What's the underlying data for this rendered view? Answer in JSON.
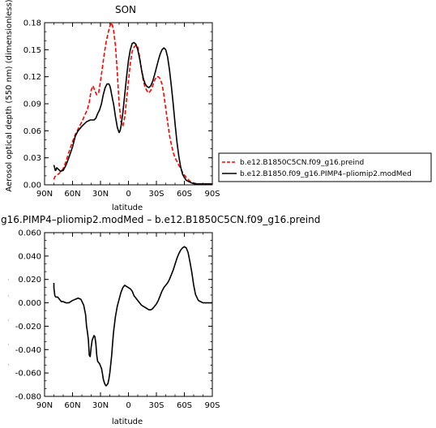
{
  "chart_data": [
    {
      "type": "line",
      "title": "SON",
      "xlabel": "latitude",
      "ylabel": "Aerosol optical depth (550 nm) (dimensionless)",
      "x_ticks": [
        90,
        60,
        30,
        0,
        -30,
        -60,
        -90
      ],
      "x_tick_labels": [
        "90N",
        "60N",
        "30N",
        "0",
        "30S",
        "60S",
        "90S"
      ],
      "xlim": [
        90,
        -90
      ],
      "y_ticks": [
        0,
        0.03,
        0.06,
        0.09,
        0.12,
        0.15,
        0.18
      ],
      "y_tick_labels": [
        "0.00",
        "0.03",
        "0.06",
        "0.09",
        "0.12",
        "0.15",
        "0.18"
      ],
      "ylim": [
        0,
        0.18
      ],
      "series": [
        {
          "name": "b.e12.B1850C5CN.f09_g16.preind",
          "color": "#ff0000",
          "dash": "dashed",
          "x": [
            80,
            79,
            77,
            75,
            73,
            70,
            67,
            64,
            60,
            57,
            54,
            50,
            47,
            44,
            42,
            40,
            38,
            36,
            34,
            32,
            30,
            28,
            26,
            24,
            22,
            20,
            18,
            16,
            14,
            12,
            10,
            8,
            6,
            4,
            2,
            0,
            -2,
            -4,
            -6,
            -8,
            -10,
            -12,
            -14,
            -16,
            -18,
            -20,
            -22,
            -24,
            -26,
            -28,
            -30,
            -32,
            -34,
            -36,
            -38,
            -40,
            -42,
            -44,
            -46,
            -48,
            -50,
            -52,
            -54,
            -56,
            -58,
            -60,
            -62,
            -64,
            -66,
            -68,
            -70,
            -72,
            -75,
            -78,
            -80,
            -84,
            -90
          ],
          "values": [
            0.006,
            0.009,
            0.011,
            0.012,
            0.014,
            0.018,
            0.026,
            0.036,
            0.048,
            0.056,
            0.062,
            0.07,
            0.077,
            0.084,
            0.092,
            0.105,
            0.11,
            0.104,
            0.1,
            0.102,
            0.115,
            0.13,
            0.145,
            0.158,
            0.168,
            0.176,
            0.18,
            0.172,
            0.155,
            0.125,
            0.09,
            0.07,
            0.065,
            0.075,
            0.095,
            0.115,
            0.135,
            0.148,
            0.153,
            0.155,
            0.153,
            0.142,
            0.128,
            0.115,
            0.108,
            0.104,
            0.102,
            0.105,
            0.11,
            0.116,
            0.12,
            0.12,
            0.118,
            0.112,
            0.1,
            0.085,
            0.07,
            0.055,
            0.045,
            0.036,
            0.03,
            0.026,
            0.022,
            0.018,
            0.014,
            0.011,
            0.008,
            0.006,
            0.004,
            0.003,
            0.002,
            0.0015,
            0.001,
            0.001,
            0.001,
            0.001,
            0.001
          ]
        },
        {
          "name": "b.e12.B1850.f09_g16.PIMP4–pliomip2.modMed",
          "color": "#000000",
          "dash": "solid",
          "x": [
            80,
            79.5,
            79,
            78.5,
            78,
            77,
            75,
            73,
            70,
            67,
            64,
            60,
            57,
            54,
            50,
            47,
            45,
            43,
            41,
            39,
            37,
            35,
            33,
            31,
            29,
            27,
            25,
            23,
            21,
            20,
            19,
            18,
            17,
            16,
            15,
            14,
            13,
            12,
            11,
            10,
            9,
            8,
            6,
            4,
            2,
            0,
            -2,
            -4,
            -6,
            -8,
            -10,
            -12,
            -14,
            -16,
            -18,
            -20,
            -22,
            -24,
            -26,
            -28,
            -30,
            -32,
            -34,
            -36,
            -38,
            -40,
            -42,
            -44,
            -46,
            -48,
            -50,
            -52,
            -54,
            -56,
            -58,
            -60,
            -62,
            -64,
            -66,
            -68,
            -70,
            -72,
            -75,
            -78,
            -80,
            -84,
            -90
          ],
          "values": [
            0.022,
            0.02,
            0.018,
            0.016,
            0.016,
            0.019,
            0.017,
            0.015,
            0.016,
            0.022,
            0.03,
            0.042,
            0.054,
            0.06,
            0.065,
            0.068,
            0.07,
            0.071,
            0.072,
            0.072,
            0.072,
            0.074,
            0.079,
            0.083,
            0.09,
            0.1,
            0.108,
            0.112,
            0.112,
            0.11,
            0.106,
            0.1,
            0.095,
            0.09,
            0.083,
            0.076,
            0.07,
            0.064,
            0.061,
            0.058,
            0.06,
            0.065,
            0.08,
            0.1,
            0.12,
            0.138,
            0.15,
            0.157,
            0.158,
            0.156,
            0.15,
            0.14,
            0.128,
            0.118,
            0.112,
            0.109,
            0.108,
            0.11,
            0.115,
            0.122,
            0.13,
            0.138,
            0.145,
            0.15,
            0.152,
            0.15,
            0.142,
            0.128,
            0.11,
            0.09,
            0.068,
            0.048,
            0.032,
            0.02,
            0.012,
            0.008,
            0.005,
            0.004,
            0.003,
            0.002,
            0.0015,
            0.001,
            0.001,
            0.001,
            0.001,
            0.001,
            0.001
          ]
        }
      ]
    },
    {
      "type": "line",
      "title": "g16.PIMP4–pliomip2.modMed  –  b.e12.B1850C5CN.f09_g16.preind",
      "xlabel": "latitude",
      "ylabel": "",
      "x_ticks": [
        90,
        60,
        30,
        0,
        -30,
        -60,
        -90
      ],
      "x_tick_labels": [
        "90N",
        "60N",
        "30N",
        "0",
        "30S",
        "60S",
        "90S"
      ],
      "xlim": [
        90,
        -90
      ],
      "y_ticks": [
        -0.08,
        -0.06,
        -0.04,
        -0.02,
        0,
        0.02,
        0.04,
        0.06
      ],
      "y_tick_labels": [
        "-0.080",
        "-0.060",
        "-0.040",
        "-0.020",
        "0.000",
        "0.020",
        "0.040",
        "0.060"
      ],
      "ylim": [
        -0.08,
        0.06
      ],
      "series": [
        {
          "color": "#000000",
          "dash": "solid",
          "x": [
            80,
            80,
            79,
            78,
            76,
            74,
            72,
            70,
            67,
            64,
            60,
            57,
            54,
            51,
            48,
            46,
            45,
            44,
            43,
            42,
            41,
            40,
            39,
            38,
            37,
            36,
            35,
            34,
            33,
            32,
            31,
            30,
            29,
            28,
            27,
            26,
            25,
            24,
            23,
            22,
            21,
            20,
            19,
            18,
            17,
            16,
            14,
            12,
            10,
            8,
            6,
            4,
            2,
            0,
            -2,
            -4,
            -6,
            -8,
            -10,
            -12,
            -14,
            -16,
            -18,
            -20,
            -22,
            -24,
            -26,
            -28,
            -30,
            -32,
            -34,
            -36,
            -38,
            -40,
            -42,
            -44,
            -46,
            -48,
            -50,
            -52,
            -54,
            -56,
            -58,
            -60,
            -62,
            -64,
            -66,
            -68,
            -70,
            -72,
            -75,
            -80,
            -85,
            -90
          ],
          "values": [
            0.017,
            0.013,
            0.006,
            0.005,
            0.005,
            0.003,
            0.001,
            0.001,
            0.0,
            0.0,
            0.002,
            0.003,
            0.004,
            0.003,
            -0.002,
            -0.01,
            -0.02,
            -0.025,
            -0.032,
            -0.045,
            -0.046,
            -0.038,
            -0.032,
            -0.03,
            -0.028,
            -0.029,
            -0.035,
            -0.045,
            -0.05,
            -0.051,
            -0.052,
            -0.054,
            -0.056,
            -0.06,
            -0.065,
            -0.068,
            -0.07,
            -0.071,
            -0.07,
            -0.069,
            -0.065,
            -0.06,
            -0.053,
            -0.045,
            -0.035,
            -0.025,
            -0.012,
            -0.003,
            0.003,
            0.009,
            0.013,
            0.015,
            0.014,
            0.013,
            0.012,
            0.01,
            0.006,
            0.004,
            0.002,
            0.0,
            -0.002,
            -0.003,
            -0.004,
            -0.005,
            -0.006,
            -0.006,
            -0.005,
            -0.003,
            -0.001,
            0.002,
            0.006,
            0.01,
            0.013,
            0.015,
            0.017,
            0.02,
            0.024,
            0.028,
            0.033,
            0.038,
            0.042,
            0.045,
            0.047,
            0.048,
            0.047,
            0.043,
            0.035,
            0.026,
            0.015,
            0.007,
            0.002,
            0.0,
            0.0,
            0.0
          ]
        }
      ]
    }
  ]
}
